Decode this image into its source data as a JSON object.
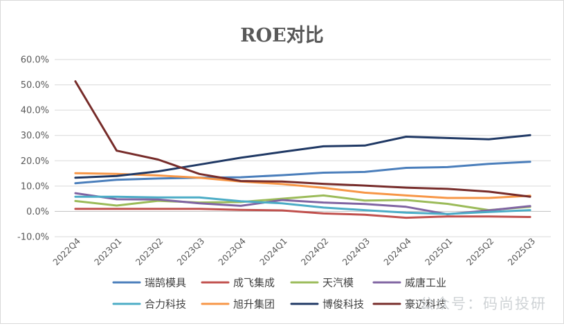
{
  "chart_data": {
    "type": "line",
    "title": "ROE对比",
    "xlabel": "",
    "ylabel": "",
    "ylim": [
      -0.1,
      0.6
    ],
    "y_ticks": [
      "60.0%",
      "50.0%",
      "40.0%",
      "30.0%",
      "20.0%",
      "10.0%",
      "0.0%",
      "-10.0%"
    ],
    "categories": [
      "2022Q4",
      "2023Q1",
      "2023Q2",
      "2023Q3",
      "2023Q4",
      "2024Q1",
      "2024Q2",
      "2024Q3",
      "2024Q4",
      "2025Q1",
      "2025Q2",
      "2025Q3"
    ],
    "grid": "horizontal",
    "legend_position": "bottom",
    "series": [
      {
        "name": "瑞鹄模具",
        "color": "#4a7ebb",
        "values": [
          0.111,
          0.125,
          0.13,
          0.133,
          0.135,
          0.143,
          0.153,
          0.156,
          0.172,
          0.175,
          0.188,
          0.196
        ]
      },
      {
        "name": "成飞集成",
        "color": "#c0504d",
        "values": [
          0.01,
          0.01,
          0.01,
          0.01,
          0.006,
          0.004,
          -0.008,
          -0.013,
          -0.025,
          -0.02,
          -0.02,
          -0.022
        ]
      },
      {
        "name": "天汽模",
        "color": "#9bbb59",
        "values": [
          0.041,
          0.023,
          0.042,
          0.035,
          0.037,
          0.05,
          0.063,
          0.043,
          0.045,
          0.03,
          0.005,
          0.018
        ]
      },
      {
        "name": "威唐工业",
        "color": "#8064a2",
        "values": [
          0.072,
          0.048,
          0.047,
          0.032,
          0.022,
          0.045,
          0.035,
          0.029,
          0.018,
          -0.011,
          0.004,
          0.021
        ]
      },
      {
        "name": "合力科技",
        "color": "#4bacc6",
        "values": [
          0.058,
          0.058,
          0.055,
          0.055,
          0.04,
          0.032,
          0.015,
          0.005,
          -0.005,
          -0.01,
          -0.002,
          0.005
        ]
      },
      {
        "name": "旭升集团",
        "color": "#f79646",
        "values": [
          0.151,
          0.148,
          0.142,
          0.133,
          0.118,
          0.108,
          0.093,
          0.074,
          0.063,
          0.053,
          0.053,
          0.062
        ]
      },
      {
        "name": "博俊科技",
        "color": "#1f3864",
        "values": [
          0.133,
          0.14,
          0.158,
          0.185,
          0.212,
          0.235,
          0.257,
          0.26,
          0.295,
          0.29,
          0.285,
          0.301
        ]
      },
      {
        "name": "豪迈科技",
        "color": "#772c2a",
        "values": [
          0.514,
          0.24,
          0.205,
          0.148,
          0.12,
          0.118,
          0.109,
          0.102,
          0.094,
          0.089,
          0.078,
          0.058
        ]
      }
    ]
  },
  "watermark": "公众号：码尚投研"
}
